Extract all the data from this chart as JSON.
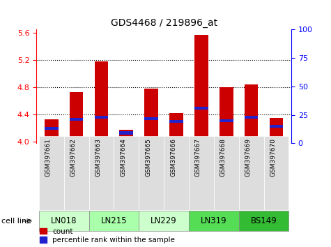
{
  "title": "GDS4468 / 219896_at",
  "samples": [
    "GSM397661",
    "GSM397662",
    "GSM397663",
    "GSM397664",
    "GSM397665",
    "GSM397666",
    "GSM397667",
    "GSM397668",
    "GSM397669",
    "GSM397670"
  ],
  "cell_lines": [
    {
      "name": "LN018",
      "indices": [
        0,
        1
      ],
      "color": "#ccffcc"
    },
    {
      "name": "LN215",
      "indices": [
        2,
        3
      ],
      "color": "#aaffaa"
    },
    {
      "name": "LN229",
      "indices": [
        4,
        5
      ],
      "color": "#ccffcc"
    },
    {
      "name": "LN319",
      "indices": [
        6,
        7
      ],
      "color": "#55dd55"
    },
    {
      "name": "BS149",
      "indices": [
        8,
        9
      ],
      "color": "#33bb33"
    }
  ],
  "count_values": [
    4.33,
    4.73,
    5.18,
    4.18,
    4.78,
    4.42,
    5.57,
    4.8,
    4.84,
    4.35
  ],
  "percentile_values": [
    12,
    20,
    22,
    8,
    21,
    18,
    30,
    19,
    22,
    14
  ],
  "ylim_left": [
    3.98,
    5.65
  ],
  "ylim_right": [
    0,
    100
  ],
  "yticks_left": [
    4.0,
    4.4,
    4.8,
    5.2,
    5.6
  ],
  "yticks_right": [
    0,
    25,
    50,
    75,
    100
  ],
  "grid_lines": [
    4.4,
    4.8,
    5.2
  ],
  "bar_color": "#cc0000",
  "percentile_color": "#2222cc",
  "bar_width": 0.55,
  "base_value": 4.0,
  "tick_bg_color": "#dddddd"
}
